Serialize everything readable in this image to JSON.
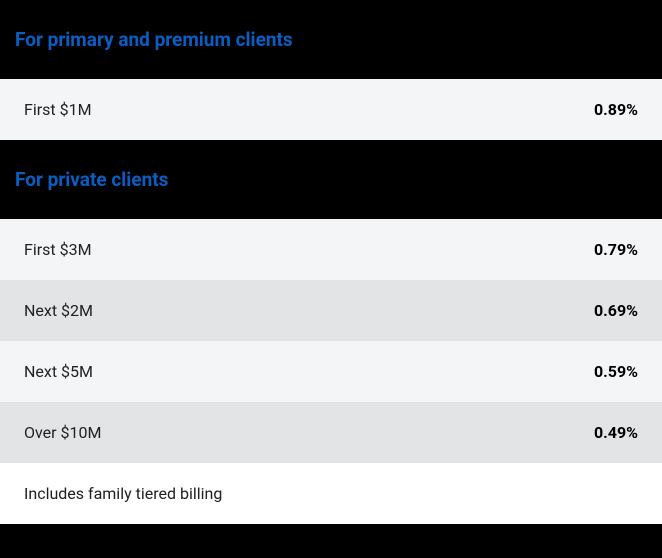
{
  "colors": {
    "page_background": "#000000",
    "heading_color": "#0a5ec2",
    "row_light": "#f3f5f6",
    "row_mid": "#e2e4e5",
    "row_white": "#ffffff",
    "label_color": "#202122",
    "rate_color": "#000000"
  },
  "typography": {
    "heading_fontsize": 19,
    "heading_fontweight": 700,
    "row_fontsize": 16,
    "label_fontweight": 400,
    "rate_fontweight": 700
  },
  "sections": {
    "primary_premium": {
      "heading": "For primary and premium clients",
      "rows": [
        {
          "tier": "First $1M",
          "rate": "0.89%"
        }
      ]
    },
    "private": {
      "heading": "For private clients",
      "rows": [
        {
          "tier": "First $3M",
          "rate": "0.79%"
        },
        {
          "tier": "Next $2M",
          "rate": "0.69%"
        },
        {
          "tier": "Next $5M",
          "rate": "0.59%"
        },
        {
          "tier": "Over $10M",
          "rate": "0.49%"
        }
      ],
      "note": "Includes family tiered billing"
    }
  }
}
